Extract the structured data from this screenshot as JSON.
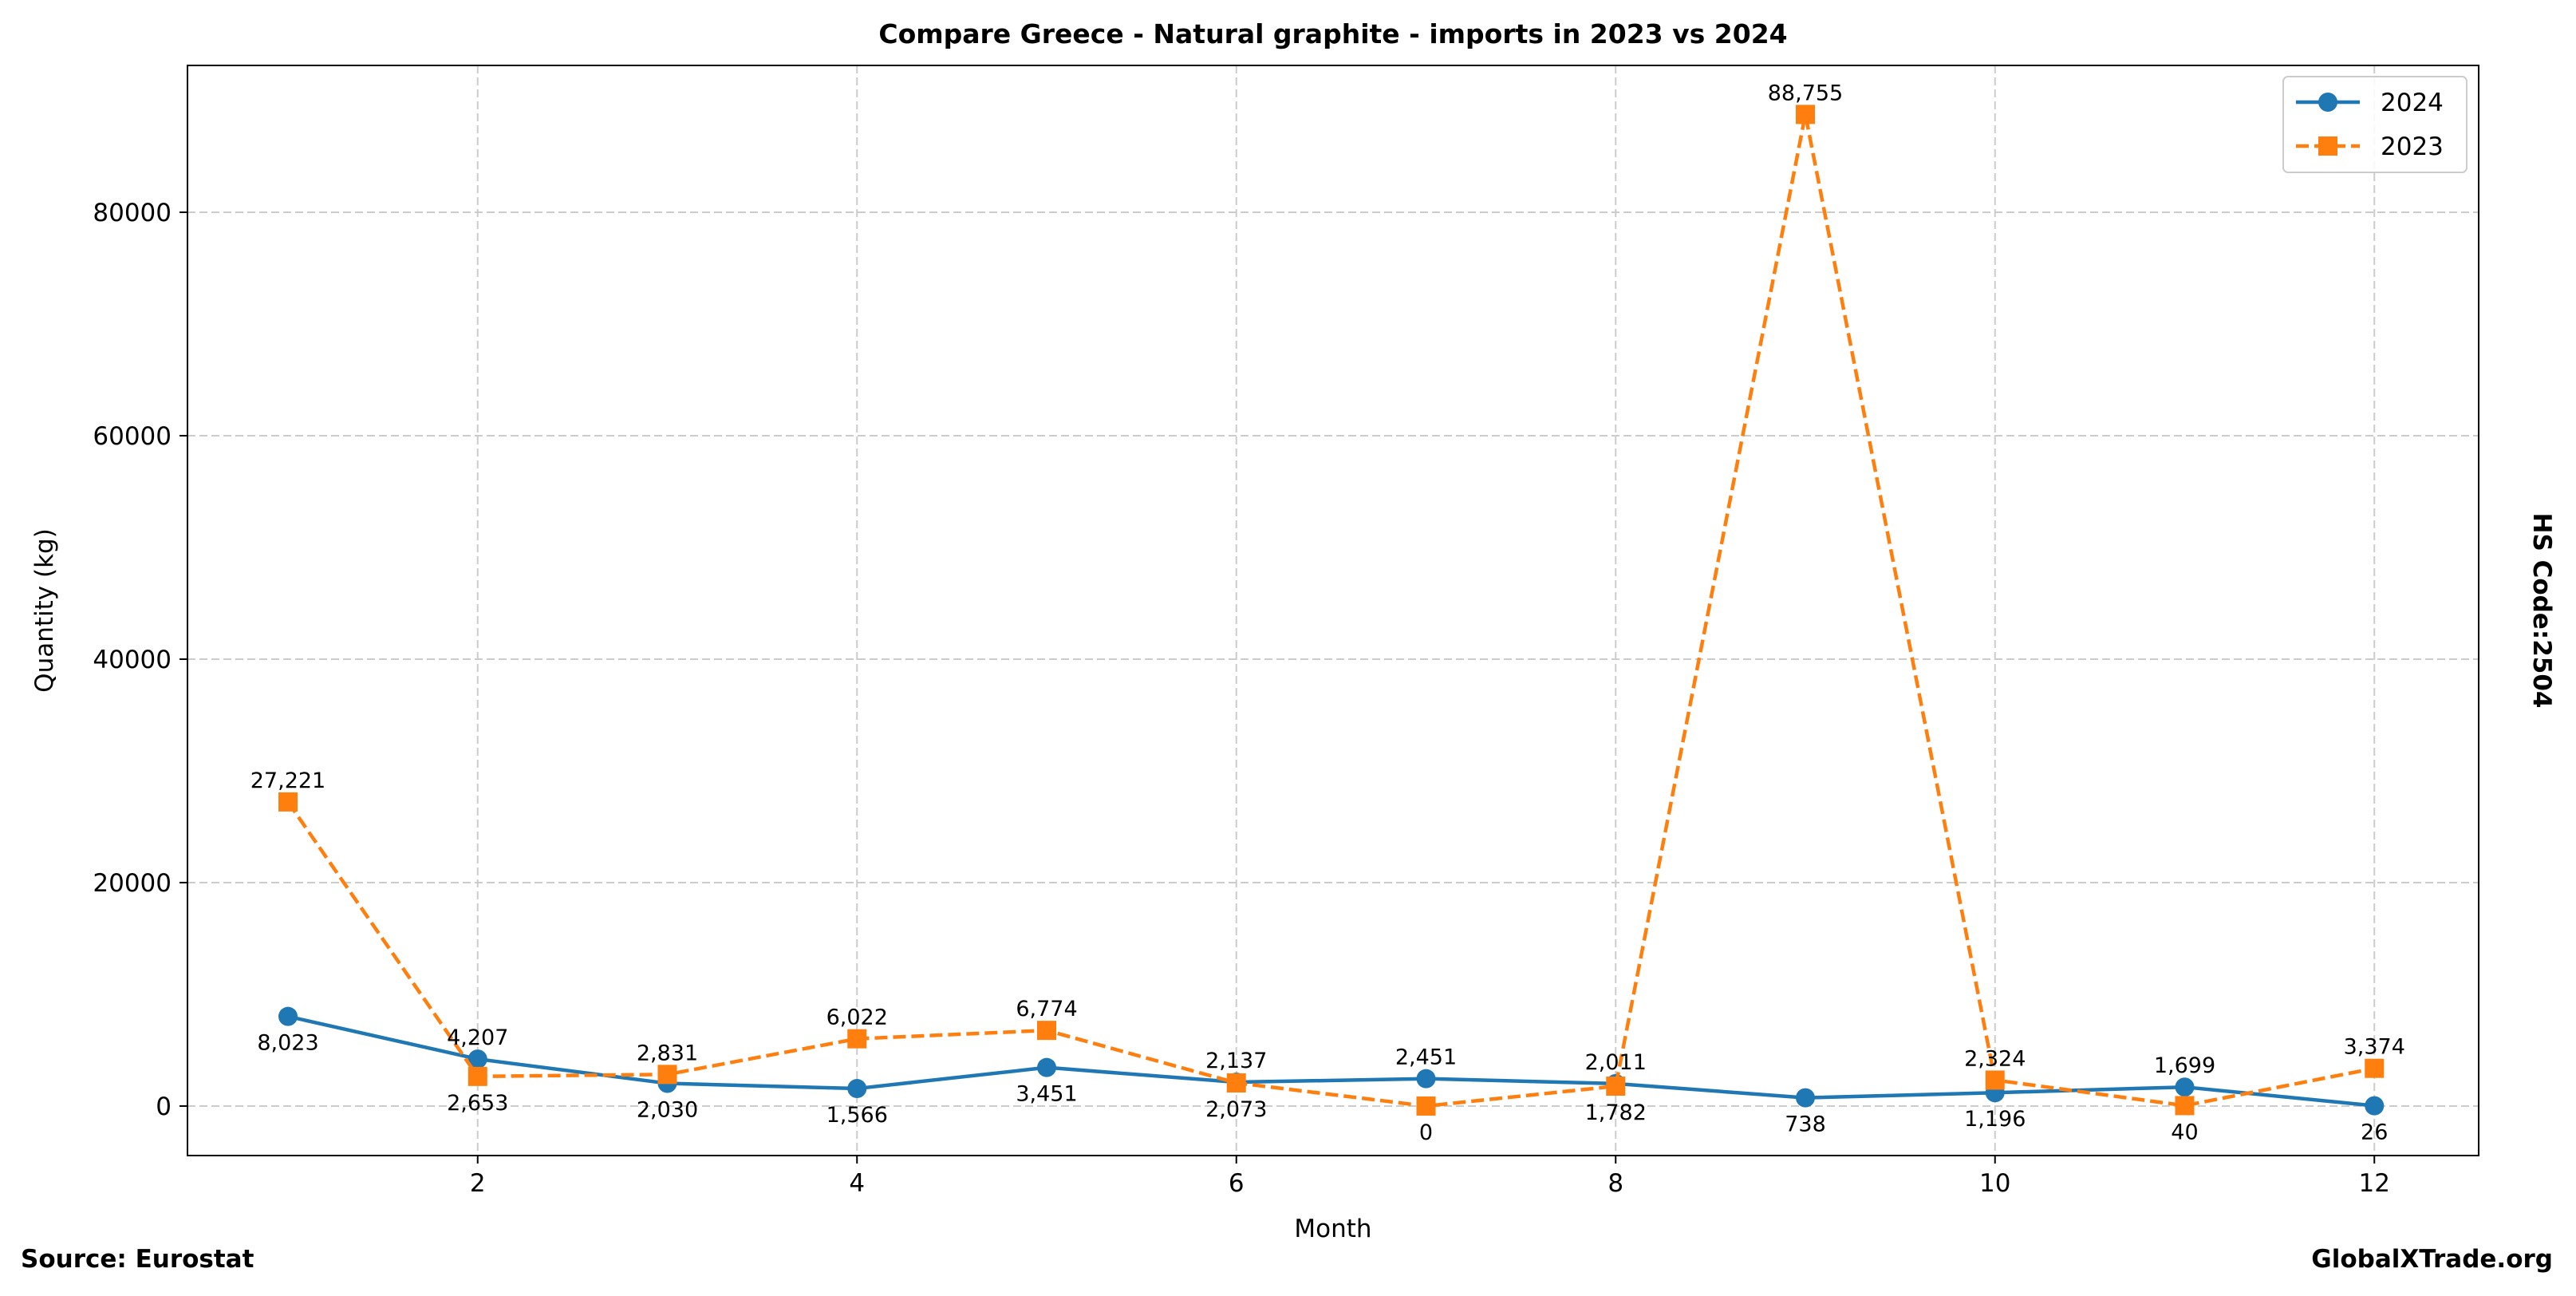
{
  "chart_data": {
    "type": "line",
    "title": "Compare Greece - Natural graphite - imports in 2023 vs 2024",
    "xlabel": "Month",
    "ylabel": "Quantity (kg)",
    "x": [
      1,
      2,
      3,
      4,
      5,
      6,
      7,
      8,
      9,
      10,
      11,
      12
    ],
    "xticks": [
      2,
      4,
      6,
      8,
      10,
      12
    ],
    "yticks": [
      0,
      20000,
      40000,
      60000,
      80000
    ],
    "xlim": [
      0.47,
      12.55
    ],
    "ylim": [
      -4430,
      93140
    ],
    "grid": true,
    "legend_position": "top-right",
    "series": [
      {
        "name": "2024",
        "color": "#1f77b4",
        "style": "solid",
        "marker": "circle",
        "values": [
          8023,
          4207,
          2030,
          1566,
          3451,
          2137,
          2451,
          2011,
          738,
          1196,
          1699,
          26
        ],
        "labels": [
          "8,023",
          "4,207",
          "2,030",
          "1,566",
          "3,451",
          "2,137",
          "2,451",
          "2,011",
          "738",
          "1,196",
          "1,699",
          "26"
        ]
      },
      {
        "name": "2023",
        "color": "#ff7f0e",
        "style": "dashed",
        "marker": "square",
        "values": [
          27221,
          2653,
          2831,
          6022,
          6774,
          2073,
          0,
          1782,
          88755,
          2324,
          40,
          3374
        ],
        "labels": [
          "27,221",
          "2,653",
          "2,831",
          "6,022",
          "6,774",
          "2,073",
          "0",
          "1,782",
          "88,755",
          "2,324",
          "40",
          "3,374"
        ]
      }
    ]
  },
  "side_label": "HS Code:2504",
  "source": "Source: Eurostat",
  "brand": "GlobalXTrade.org"
}
